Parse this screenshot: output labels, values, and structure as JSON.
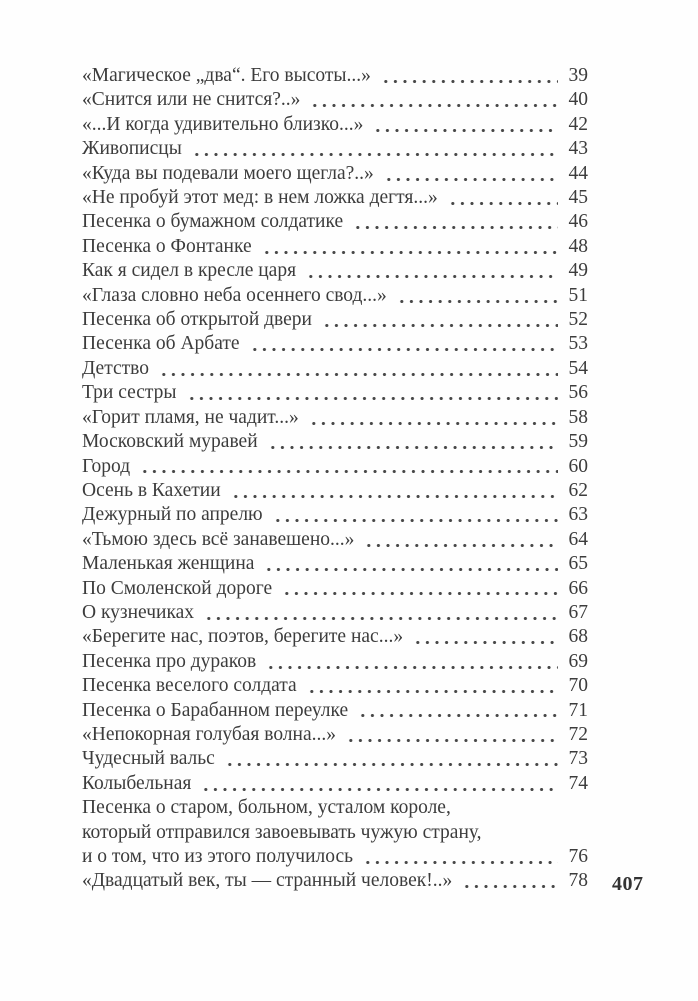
{
  "colors": {
    "ink": "#3c3c3c",
    "folio_ink": "#333333",
    "paper": "#fefefe"
  },
  "folio": "407",
  "toc": {
    "entries": [
      {
        "lines": [
          "«Магическое „два“. Его высоты...»"
        ],
        "page": "39"
      },
      {
        "lines": [
          "«Снится или не снится?..»"
        ],
        "page": "40"
      },
      {
        "lines": [
          "«...И когда удивительно близко...»"
        ],
        "page": "42"
      },
      {
        "lines": [
          "Живописцы"
        ],
        "page": "43"
      },
      {
        "lines": [
          "«Куда вы подевали моего щегла?..»"
        ],
        "page": "44"
      },
      {
        "lines": [
          "«Не пробуй этот мед: в нем ложка дегтя...»"
        ],
        "page": "45"
      },
      {
        "lines": [
          "Песенка о бумажном солдатике"
        ],
        "page": "46"
      },
      {
        "lines": [
          "Песенка о Фонтанке"
        ],
        "page": "48"
      },
      {
        "lines": [
          "Как я сидел в кресле царя"
        ],
        "page": "49"
      },
      {
        "lines": [
          "«Глаза словно неба осеннего свод...»"
        ],
        "page": "51"
      },
      {
        "lines": [
          "Песенка об открытой двери"
        ],
        "page": "52"
      },
      {
        "lines": [
          "Песенка об Арбате"
        ],
        "page": "53"
      },
      {
        "lines": [
          "Детство"
        ],
        "page": "54"
      },
      {
        "lines": [
          "Три сестры"
        ],
        "page": "56"
      },
      {
        "lines": [
          "«Горит пламя, не чадит...»"
        ],
        "page": "58"
      },
      {
        "lines": [
          "Московский муравей"
        ],
        "page": "59"
      },
      {
        "lines": [
          "Город"
        ],
        "page": "60"
      },
      {
        "lines": [
          "Осень в Кахетии"
        ],
        "page": "62"
      },
      {
        "lines": [
          "Дежурный по апрелю"
        ],
        "page": "63"
      },
      {
        "lines": [
          "«Тьмою здесь всё занавешено...»"
        ],
        "page": "64"
      },
      {
        "lines": [
          "Маленькая женщина"
        ],
        "page": "65"
      },
      {
        "lines": [
          "По Смоленской дороге"
        ],
        "page": "66"
      },
      {
        "lines": [
          "О кузнечиках"
        ],
        "page": "67"
      },
      {
        "lines": [
          "«Берегите нас, поэтов, берегите нас...»"
        ],
        "page": "68"
      },
      {
        "lines": [
          "Песенка про дураков"
        ],
        "page": "69"
      },
      {
        "lines": [
          "Песенка веселого солдата"
        ],
        "page": "70"
      },
      {
        "lines": [
          "Песенка о Барабанном переулке"
        ],
        "page": "71"
      },
      {
        "lines": [
          "«Непокорная голубая волна...»"
        ],
        "page": "72"
      },
      {
        "lines": [
          "Чудесный вальс"
        ],
        "page": "73"
      },
      {
        "lines": [
          "Колыбельная"
        ],
        "page": "74"
      },
      {
        "lines": [
          "Песенка о старом, больном, усталом короле,",
          "который отправился завоевывать чужую страну,",
          "и о том, что из этого получилось"
        ],
        "page": "76"
      },
      {
        "lines": [
          "«Двадцатый век, ты — странный человек!..»"
        ],
        "page": "78"
      }
    ]
  }
}
